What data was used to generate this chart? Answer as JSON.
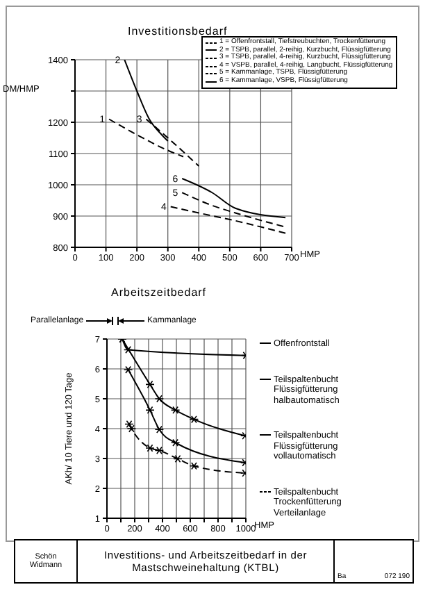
{
  "chart_data": [
    {
      "type": "line",
      "title": "Investitionsbedarf",
      "ylabel": "DM/HMP",
      "xlabel": "HMP",
      "xlim": [
        0,
        700
      ],
      "xticks": [
        0,
        100,
        200,
        300,
        400,
        500,
        600,
        700
      ],
      "ylim": [
        800,
        1400
      ],
      "yticks": [
        800,
        900,
        1000,
        1100,
        1200,
        {
          "value": 1300,
          "label": null
        },
        1400
      ],
      "grid": true,
      "legend": "top right",
      "marker": "none",
      "series": [
        {
          "name": "1 = Offenfrontstall, Tiefstreubuchten, Trockenfütterung",
          "color": "#000000",
          "line_style": "dashed",
          "x": [
            110,
            200,
            300,
            350
          ],
          "values": [
            1210,
            1160,
            1110,
            1090
          ]
        },
        {
          "name": "2 = TSPB, parallel, 2-reihig, Kurzbucht, Flüssigfütterung",
          "color": "#000000",
          "line_style": "solid",
          "x": [
            160,
            200,
            240,
            280,
            300
          ],
          "values": [
            1400,
            1300,
            1210,
            1160,
            1140
          ]
        },
        {
          "name": "3 = TSPB, parallel, 4-reihig, Kurzbucht, Flüssigfütterung",
          "color": "#000000",
          "line_style": "dashed",
          "x": [
            230,
            300,
            400
          ],
          "values": [
            1210,
            1150,
            1060
          ]
        },
        {
          "name": "4 = VSPB, parallel, 4-reihig, Langbucht, Flüssigfütterung",
          "color": "#000000",
          "line_style": "dashed",
          "x": [
            309,
            400,
            518,
            680
          ],
          "values": [
            930,
            910,
            885,
            845
          ]
        },
        {
          "name": "5 = Kammanlage, TSPB, Flüssigfütterung",
          "color": "#000000",
          "line_style": "dashed",
          "x": [
            346,
            440,
            518,
            680
          ],
          "values": [
            975,
            935,
            910,
            865
          ]
        },
        {
          "name": "6 = Kammanlage, VSPB, Flüssigfütterung",
          "color": "#000000",
          "line_style": "solid",
          "x": [
            346,
            443,
            518,
            680
          ],
          "values": [
            1020,
            975,
            925,
            895
          ]
        }
      ],
      "annotations": [
        {
          "text": "1",
          "x": 110,
          "y": 1210
        },
        {
          "text": "2",
          "x": 160,
          "y": 1400
        },
        {
          "text": "3",
          "x": 230,
          "y": 1210
        },
        {
          "text": "4",
          "x": 309,
          "y": 930
        },
        {
          "text": "5",
          "x": 346,
          "y": 975
        },
        {
          "text": "6",
          "x": 346,
          "y": 1020
        }
      ]
    },
    {
      "type": "line",
      "title": "Arbeitszeitbedarf",
      "ylabel": "AKh/ 10 Tiere und 120 Tage",
      "xlabel": "HMP",
      "xlim": [
        0,
        1000
      ],
      "xticks": [
        0,
        {
          "value": 100,
          "label": null
        },
        200,
        {
          "value": 300,
          "label": null
        },
        400,
        {
          "value": 500,
          "label": null
        },
        600,
        {
          "value": 700,
          "label": null
        },
        800,
        {
          "value": 900,
          "label": null
        },
        1000
      ],
      "ylim": [
        1,
        7
      ],
      "yticks": [
        1,
        2,
        3,
        4,
        5,
        6,
        7
      ],
      "grid": true,
      "legend": "right",
      "marker": "cross",
      "series": [
        {
          "name": "Offenfrontstall",
          "color": "#000000",
          "line_style": "solid",
          "x": [
            110,
            153,
            1000
          ],
          "values": [
            7.0,
            6.64,
            6.45
          ]
        },
        {
          "name": "Teilspaltenbucht Flüssigfütterung halbautomatisch",
          "color": "#000000",
          "line_style": "solid",
          "x": [
            110,
            310,
            377,
            493,
            627,
            994
          ],
          "values": [
            7.0,
            5.48,
            5.0,
            4.62,
            4.31,
            3.76
          ]
        },
        {
          "name": "Teilspaltenbucht Flüssigfütterung vollautomatisch",
          "color": "#000000",
          "line_style": "solid",
          "x": [
            153,
            310,
            377,
            493,
            994
          ],
          "values": [
            5.97,
            4.62,
            3.97,
            3.53,
            2.86
          ]
        },
        {
          "name": "Teilspaltenbucht Trockenfütterung Verteilanlage",
          "color": "#000000",
          "line_style": "dashed",
          "x": [
            160,
            177,
            310,
            377,
            510,
            627,
            994
          ],
          "values": [
            4.15,
            4.0,
            3.35,
            3.27,
            2.99,
            2.75,
            2.51
          ]
        }
      ],
      "annotations": [
        "Parallelanlage",
        "Kammanlage"
      ]
    },
    {
      "type": "other",
      "title": "Investitions- und Arbeitszeitbedarf in der Mastschweinehaltung (KTBL)",
      "annotations": [
        "Schön Widmann",
        "Ba",
        "072 190"
      ]
    }
  ]
}
